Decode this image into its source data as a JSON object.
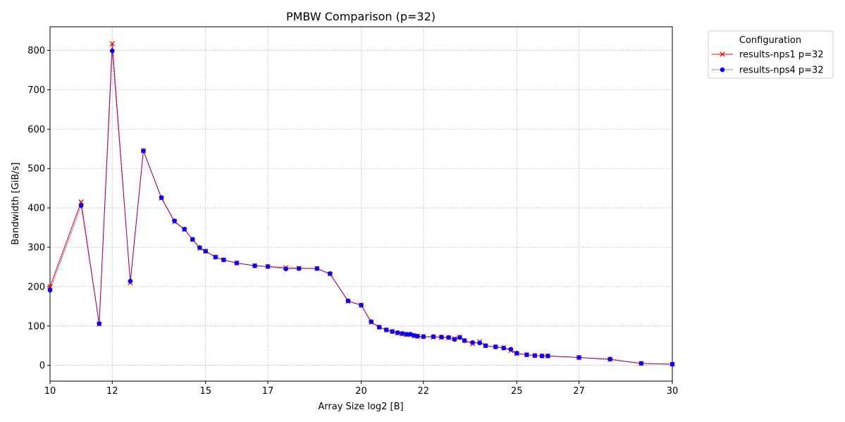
{
  "chart_data": {
    "type": "line",
    "title": "PMBW Comparison (p=32)",
    "xlabel": "Array Size log2 [B]",
    "ylabel": "Bandwidth [GiB/s]",
    "xlim": [
      10,
      30
    ],
    "ylim": [
      -40,
      860
    ],
    "xticks": [
      10,
      12,
      15,
      17,
      20,
      22,
      25,
      27,
      30
    ],
    "xtick_labels": [
      "10",
      "12",
      "15",
      "17",
      "20",
      "22",
      "25",
      "27",
      "30"
    ],
    "yticks": [
      0,
      100,
      200,
      300,
      400,
      500,
      600,
      700,
      800
    ],
    "ytick_labels": [
      "0",
      "100",
      "200",
      "300",
      "400",
      "500",
      "600",
      "700",
      "800"
    ],
    "grid": true,
    "legend": {
      "title": "Configuration",
      "placement": "outside-top-right"
    },
    "series": [
      {
        "name": "results-nps1 p=32",
        "color": "#ff0000",
        "line_style": "solid",
        "marker": "x",
        "x": [
          10.0,
          11.0,
          11.58,
          12.0,
          12.58,
          13.0,
          13.58,
          14.0,
          14.32,
          14.58,
          14.81,
          15.0,
          15.32,
          15.58,
          16.0,
          16.58,
          17.0,
          17.58,
          18.0,
          18.58,
          19.0,
          19.58,
          20.0,
          20.32,
          20.58,
          20.81,
          21.0,
          21.17,
          21.32,
          21.46,
          21.58,
          21.7,
          21.81,
          22.0,
          22.32,
          22.58,
          22.81,
          23.0,
          23.17,
          23.32,
          23.58,
          23.81,
          24.0,
          24.32,
          24.58,
          24.81,
          25.0,
          25.32,
          25.58,
          25.81,
          26.0,
          27.0,
          28.0,
          29.0,
          30.0
        ],
        "y": [
          200,
          415,
          105,
          817,
          210,
          545,
          425,
          365,
          345,
          320,
          298,
          290,
          275,
          268,
          260,
          253,
          251,
          248,
          247,
          246,
          232,
          163,
          153,
          110,
          97,
          90,
          86,
          82,
          80,
          78,
          78,
          75,
          74,
          73,
          72,
          71,
          70,
          68,
          72,
          63,
          55,
          60,
          50,
          47,
          45,
          38,
          30,
          27,
          25,
          24,
          24,
          20,
          15,
          5,
          3
        ]
      },
      {
        "name": "results-nps4 p=32",
        "color": "#0000ff",
        "line_style": "dotted",
        "marker": "o",
        "x": [
          10.0,
          11.0,
          11.58,
          12.0,
          12.58,
          13.0,
          13.58,
          14.0,
          14.32,
          14.58,
          14.81,
          15.0,
          15.32,
          15.58,
          16.0,
          16.58,
          17.0,
          17.58,
          18.0,
          18.58,
          19.0,
          19.58,
          20.0,
          20.32,
          20.58,
          20.81,
          21.0,
          21.17,
          21.32,
          21.46,
          21.58,
          21.7,
          21.81,
          22.0,
          22.32,
          22.58,
          22.81,
          23.0,
          23.17,
          23.32,
          23.58,
          23.81,
          24.0,
          24.32,
          24.58,
          24.81,
          25.0,
          25.32,
          25.58,
          25.81,
          26.0,
          27.0,
          28.0,
          29.0,
          30.0
        ],
        "y": [
          191,
          406,
          106,
          799,
          214,
          545,
          426,
          367,
          346,
          320,
          299,
          290,
          275,
          268,
          260,
          253,
          251,
          245,
          246,
          246,
          233,
          164,
          153,
          111,
          97,
          90,
          86,
          83,
          81,
          79,
          79,
          76,
          74,
          73,
          73,
          72,
          71,
          66,
          71,
          63,
          58,
          57,
          50,
          47,
          44,
          41,
          31,
          27,
          25,
          24,
          24,
          20,
          16,
          5,
          3
        ]
      }
    ]
  }
}
